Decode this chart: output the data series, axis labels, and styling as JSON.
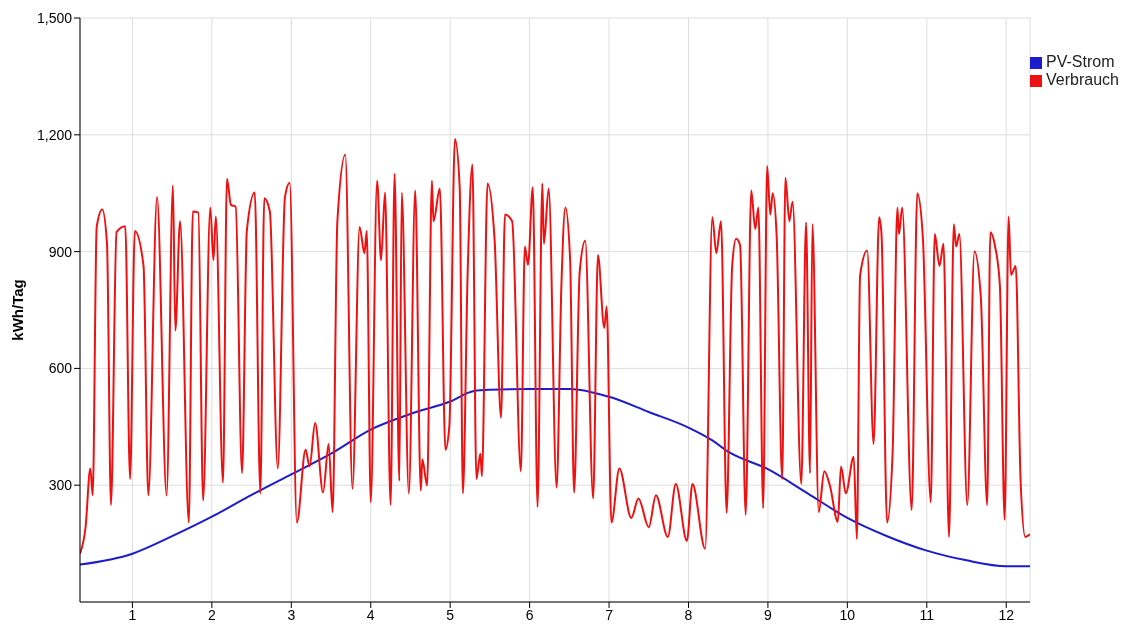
{
  "chart_data": {
    "type": "line",
    "ylabel": "kWh/Tag",
    "xlim": [
      0.34,
      12.3
    ],
    "xticks": [
      1,
      2,
      3,
      4,
      5,
      6,
      7,
      8,
      9,
      10,
      11,
      12
    ],
    "ylim": [
      0,
      1500
    ],
    "yticks": [
      300,
      600,
      900,
      {
        "value": 1200,
        "label": "1,200"
      },
      {
        "value": 1500,
        "label": "1,500"
      }
    ],
    "grid": true,
    "legend": "top right",
    "marker": "none",
    "line_style": "solid",
    "series": [
      {
        "name": "PV-Strom",
        "color": "#1c1ccc",
        "x": [
          0.34,
          1.0,
          1.5,
          2.0,
          2.5,
          3.0,
          3.5,
          4.0,
          4.5,
          5.0,
          5.3,
          5.5,
          6.0,
          6.5,
          7.0,
          7.5,
          8.0,
          8.3,
          8.5,
          9.0,
          9.5,
          10.0,
          10.5,
          11.0,
          11.5,
          12.0,
          12.3
        ],
        "values": [
          96,
          124,
          169,
          219,
          275,
          328,
          381,
          443,
          483,
          515,
          542,
          545,
          547,
          547,
          527,
          488,
          448,
          415,
          386,
          341,
          279,
          216,
          169,
          132,
          107,
          92,
          92
        ]
      },
      {
        "name": "Verbrauch",
        "color": "#ee1111",
        "x": [
          0.34,
          0.41,
          0.47,
          0.5,
          0.55,
          0.62,
          0.68,
          0.73,
          0.8,
          0.91,
          0.97,
          1.03,
          1.14,
          1.2,
          1.31,
          1.43,
          1.51,
          1.54,
          1.6,
          1.71,
          1.76,
          1.83,
          1.89,
          1.98,
          2.02,
          2.05,
          2.14,
          2.19,
          2.24,
          2.3,
          2.38,
          2.44,
          2.54,
          2.61,
          2.66,
          2.73,
          2.83,
          2.92,
          2.98,
          3.07,
          3.18,
          3.23,
          3.3,
          3.4,
          3.47,
          3.52,
          3.58,
          3.68,
          3.77,
          3.86,
          3.92,
          3.95,
          4.0,
          4.08,
          4.13,
          4.18,
          4.25,
          4.3,
          4.36,
          4.39,
          4.48,
          4.56,
          4.63,
          4.65,
          4.71,
          4.77,
          4.79,
          4.87,
          4.94,
          4.99,
          5.06,
          5.12,
          5.16,
          5.22,
          5.28,
          5.33,
          5.38,
          5.4,
          5.47,
          5.56,
          5.64,
          5.69,
          5.78,
          5.89,
          5.94,
          5.98,
          6.04,
          6.1,
          6.16,
          6.18,
          6.24,
          6.34,
          6.4,
          6.45,
          6.51,
          6.56,
          6.63,
          6.7,
          6.8,
          6.86,
          6.94,
          6.97,
          7.03,
          7.13,
          7.28,
          7.37,
          7.5,
          7.59,
          7.74,
          7.84,
          7.98,
          8.05,
          8.21,
          8.3,
          8.35,
          8.41,
          8.48,
          8.55,
          8.6,
          8.65,
          8.72,
          8.79,
          8.84,
          8.88,
          8.94,
          8.99,
          9.03,
          9.06,
          9.11,
          9.18,
          9.22,
          9.27,
          9.31,
          9.42,
          9.48,
          9.53,
          9.56,
          9.64,
          9.71,
          9.78,
          9.88,
          9.92,
          9.98,
          10.08,
          10.12,
          10.16,
          10.25,
          10.33,
          10.4,
          10.43,
          10.5,
          10.57,
          10.63,
          10.65,
          10.69,
          10.81,
          10.88,
          10.95,
          11.05,
          11.1,
          11.16,
          11.21,
          11.28,
          11.34,
          11.37,
          11.41,
          11.51,
          11.6,
          11.68,
          11.76,
          11.8,
          11.86,
          11.92,
          11.98,
          12.03,
          12.06,
          12.12,
          12.18,
          12.24,
          12.3
        ],
        "values": [
          124,
          192,
          343,
          274,
          963,
          1008,
          920,
          249,
          950,
          965,
          316,
          953,
          863,
          274,
          1040,
          274,
          1070,
          697,
          978,
          204,
          1003,
          1000,
          261,
          1013,
          878,
          990,
          306,
          1087,
          1020,
          1015,
          331,
          953,
          1052,
          279,
          1037,
          1003,
          343,
          1040,
          1077,
          204,
          391,
          348,
          460,
          281,
          406,
          231,
          978,
          1149,
          291,
          963,
          896,
          953,
          256,
          1082,
          878,
          1052,
          249,
          1100,
          311,
          1052,
          279,
          1057,
          286,
          366,
          299,
          1082,
          978,
          1062,
          391,
          453,
          1189,
          1065,
          279,
          846,
          1124,
          316,
          381,
          323,
          1075,
          928,
          473,
          995,
          978,
          336,
          913,
          866,
          1065,
          244,
          1075,
          920,
          1062,
          294,
          813,
          1013,
          878,
          281,
          846,
          928,
          266,
          891,
          704,
          759,
          204,
          343,
          216,
          266,
          192,
          274,
          167,
          303,
          157,
          303,
          137,
          988,
          896,
          978,
          229,
          863,
          933,
          916,
          224,
          1057,
          958,
          1013,
          241,
          1120,
          995,
          1050,
          940,
          316,
          1090,
          978,
          1028,
          303,
          975,
          331,
          970,
          231,
          336,
          299,
          206,
          348,
          279,
          373,
          162,
          838,
          903,
          406,
          988,
          945,
          204,
          386,
          1013,
          945,
          1013,
          236,
          1050,
          938,
          256,
          945,
          863,
          920,
          167,
          970,
          913,
          945,
          249,
          900,
          784,
          249,
          950,
          913,
          813,
          211,
          990,
          840,
          863,
          316,
          167,
          174
        ]
      }
    ]
  }
}
